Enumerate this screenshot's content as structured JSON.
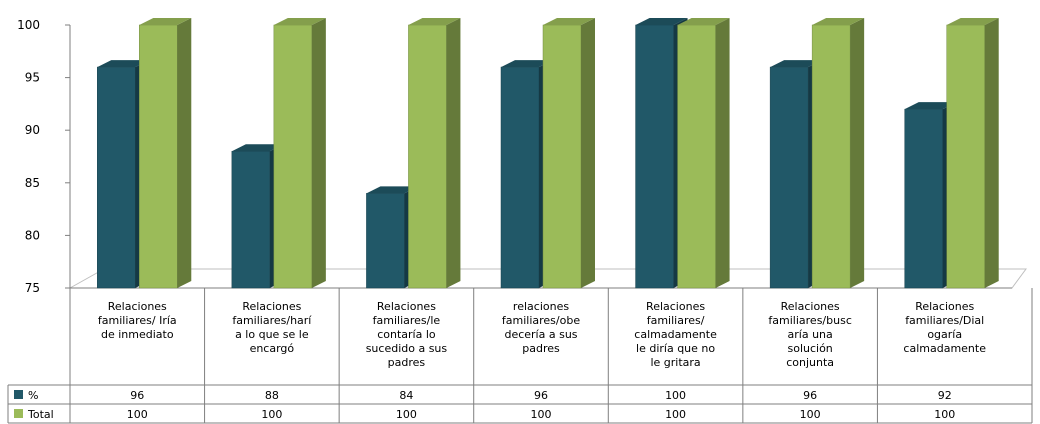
{
  "chart_data": {
    "type": "bar",
    "categories": [
      "Relaciones familiares/ Iría de inmediato",
      "Relaciones familiares/haría lo que se le encargó",
      "Relaciones familiares/le contaría lo sucedido a sus padres",
      "relaciones familiares/obedecería a sus padres",
      "Relaciones familiares/ calmadamente le diría que no le gritara",
      "Relaciones familiares/buscaría una solución conjunta",
      "Relaciones familiares/Dialogaría calmadamente"
    ],
    "category_label_lines": [
      [
        "Relaciones",
        "familiares/ Iría",
        "de inmediato"
      ],
      [
        "Relaciones",
        "familiares/harí",
        "a lo que se le",
        "encargó"
      ],
      [
        "Relaciones",
        "familiares/le",
        "contaría lo",
        "sucedido a sus",
        "padres"
      ],
      [
        "relaciones",
        "familiares/obe",
        "decería a sus",
        "padres"
      ],
      [
        "Relaciones",
        "familiares/",
        "calmadamente",
        "le diría que no",
        "le gritara"
      ],
      [
        "Relaciones",
        "familiares/busc",
        "aría una",
        "solución",
        "conjunta"
      ],
      [
        "Relaciones",
        "familiares/Dial",
        "ogaría",
        "calmadamente"
      ]
    ],
    "series": [
      {
        "name": "%",
        "values": [
          96,
          88,
          84,
          96,
          100,
          96,
          92
        ],
        "color": "#215868"
      },
      {
        "name": "Total",
        "values": [
          100,
          100,
          100,
          100,
          100,
          100,
          100
        ],
        "color": "#9bbb59"
      }
    ],
    "ylim": [
      75,
      100
    ],
    "yticks": [
      75,
      80,
      85,
      90,
      95,
      100
    ],
    "grid": false,
    "legend": "data-table-left",
    "title": "",
    "xlabel": "",
    "ylabel": ""
  }
}
